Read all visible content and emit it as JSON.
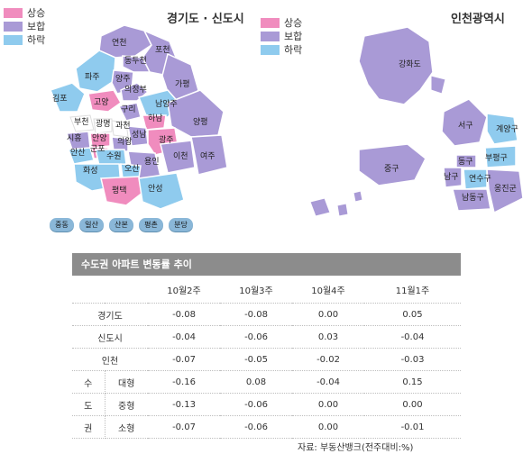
{
  "legend": {
    "items": [
      {
        "label": "상승",
        "color": "#f08cbe"
      },
      {
        "label": "보합",
        "color": "#a99ad6"
      },
      {
        "label": "하락",
        "color": "#8fcbee"
      }
    ]
  },
  "colors": {
    "up": "#f08cbe",
    "flat": "#a99ad6",
    "down": "#8fcbee",
    "bg": "#ffffff",
    "header": "#8c8c8c"
  },
  "gyeonggi": {
    "title": "경기도 · 신도시",
    "regions": [
      {
        "name": "연천",
        "status": "flat"
      },
      {
        "name": "포천",
        "status": "flat"
      },
      {
        "name": "동두천",
        "status": "flat"
      },
      {
        "name": "파주",
        "status": "down"
      },
      {
        "name": "양주",
        "status": "flat"
      },
      {
        "name": "의정부",
        "status": "flat"
      },
      {
        "name": "가평",
        "status": "flat"
      },
      {
        "name": "김포",
        "status": "down"
      },
      {
        "name": "고양",
        "status": "up"
      },
      {
        "name": "남양주",
        "status": "down"
      },
      {
        "name": "구리",
        "status": "flat"
      },
      {
        "name": "하남",
        "status": "up"
      },
      {
        "name": "양평",
        "status": "flat"
      },
      {
        "name": "부천",
        "status": "flat"
      },
      {
        "name": "광명",
        "status": "flat"
      },
      {
        "name": "과천",
        "status": "flat"
      },
      {
        "name": "성남",
        "status": "flat"
      },
      {
        "name": "시흥",
        "status": "flat"
      },
      {
        "name": "안양",
        "status": "up"
      },
      {
        "name": "의왕",
        "status": "flat"
      },
      {
        "name": "광주",
        "status": "up"
      },
      {
        "name": "안산",
        "status": "down"
      },
      {
        "name": "군포",
        "status": "up"
      },
      {
        "name": "수원",
        "status": "down"
      },
      {
        "name": "용인",
        "status": "flat"
      },
      {
        "name": "이천",
        "status": "flat"
      },
      {
        "name": "여주",
        "status": "flat"
      },
      {
        "name": "화성",
        "status": "down"
      },
      {
        "name": "오산",
        "status": "down"
      },
      {
        "name": "평택",
        "status": "up"
      },
      {
        "name": "안성",
        "status": "down"
      }
    ],
    "new_towns": [
      "중동",
      "일산",
      "산본",
      "평촌",
      "분당"
    ]
  },
  "incheon": {
    "title": "인천광역시",
    "regions": [
      {
        "name": "강화도",
        "status": "flat"
      },
      {
        "name": "서구",
        "status": "flat"
      },
      {
        "name": "계양구",
        "status": "down"
      },
      {
        "name": "동구",
        "status": "flat"
      },
      {
        "name": "부평구",
        "status": "down"
      },
      {
        "name": "중구",
        "status": "flat"
      },
      {
        "name": "남구",
        "status": "down"
      },
      {
        "name": "연수구",
        "status": "flat"
      },
      {
        "name": "남동구",
        "status": "flat"
      },
      {
        "name": "옹진군",
        "status": "flat"
      }
    ]
  },
  "table": {
    "title": "수도권 아파트 변동률 추이",
    "columns": [
      "10월2주",
      "10월3주",
      "10월4주",
      "11월1주"
    ],
    "rows": [
      {
        "label": "경기도",
        "values": [
          "-0.08",
          "-0.08",
          "0.00",
          "0.05"
        ]
      },
      {
        "label": "신도시",
        "values": [
          "-0.04",
          "-0.06",
          "0.03",
          "-0.04"
        ]
      },
      {
        "label": "인천",
        "values": [
          "-0.07",
          "-0.05",
          "-0.02",
          "-0.03"
        ]
      }
    ],
    "group_label": [
      "수",
      "도",
      "권"
    ],
    "group_rows": [
      {
        "label": "대형",
        "values": [
          "-0.16",
          "0.08",
          "-0.04",
          "0.15"
        ]
      },
      {
        "label": "중형",
        "values": [
          "-0.13",
          "-0.06",
          "0.00",
          "0.00"
        ]
      },
      {
        "label": "소형",
        "values": [
          "-0.07",
          "-0.06",
          "0.00",
          "-0.01"
        ]
      }
    ],
    "source": "자료: 부동산뱅크(전주대비:%)"
  }
}
